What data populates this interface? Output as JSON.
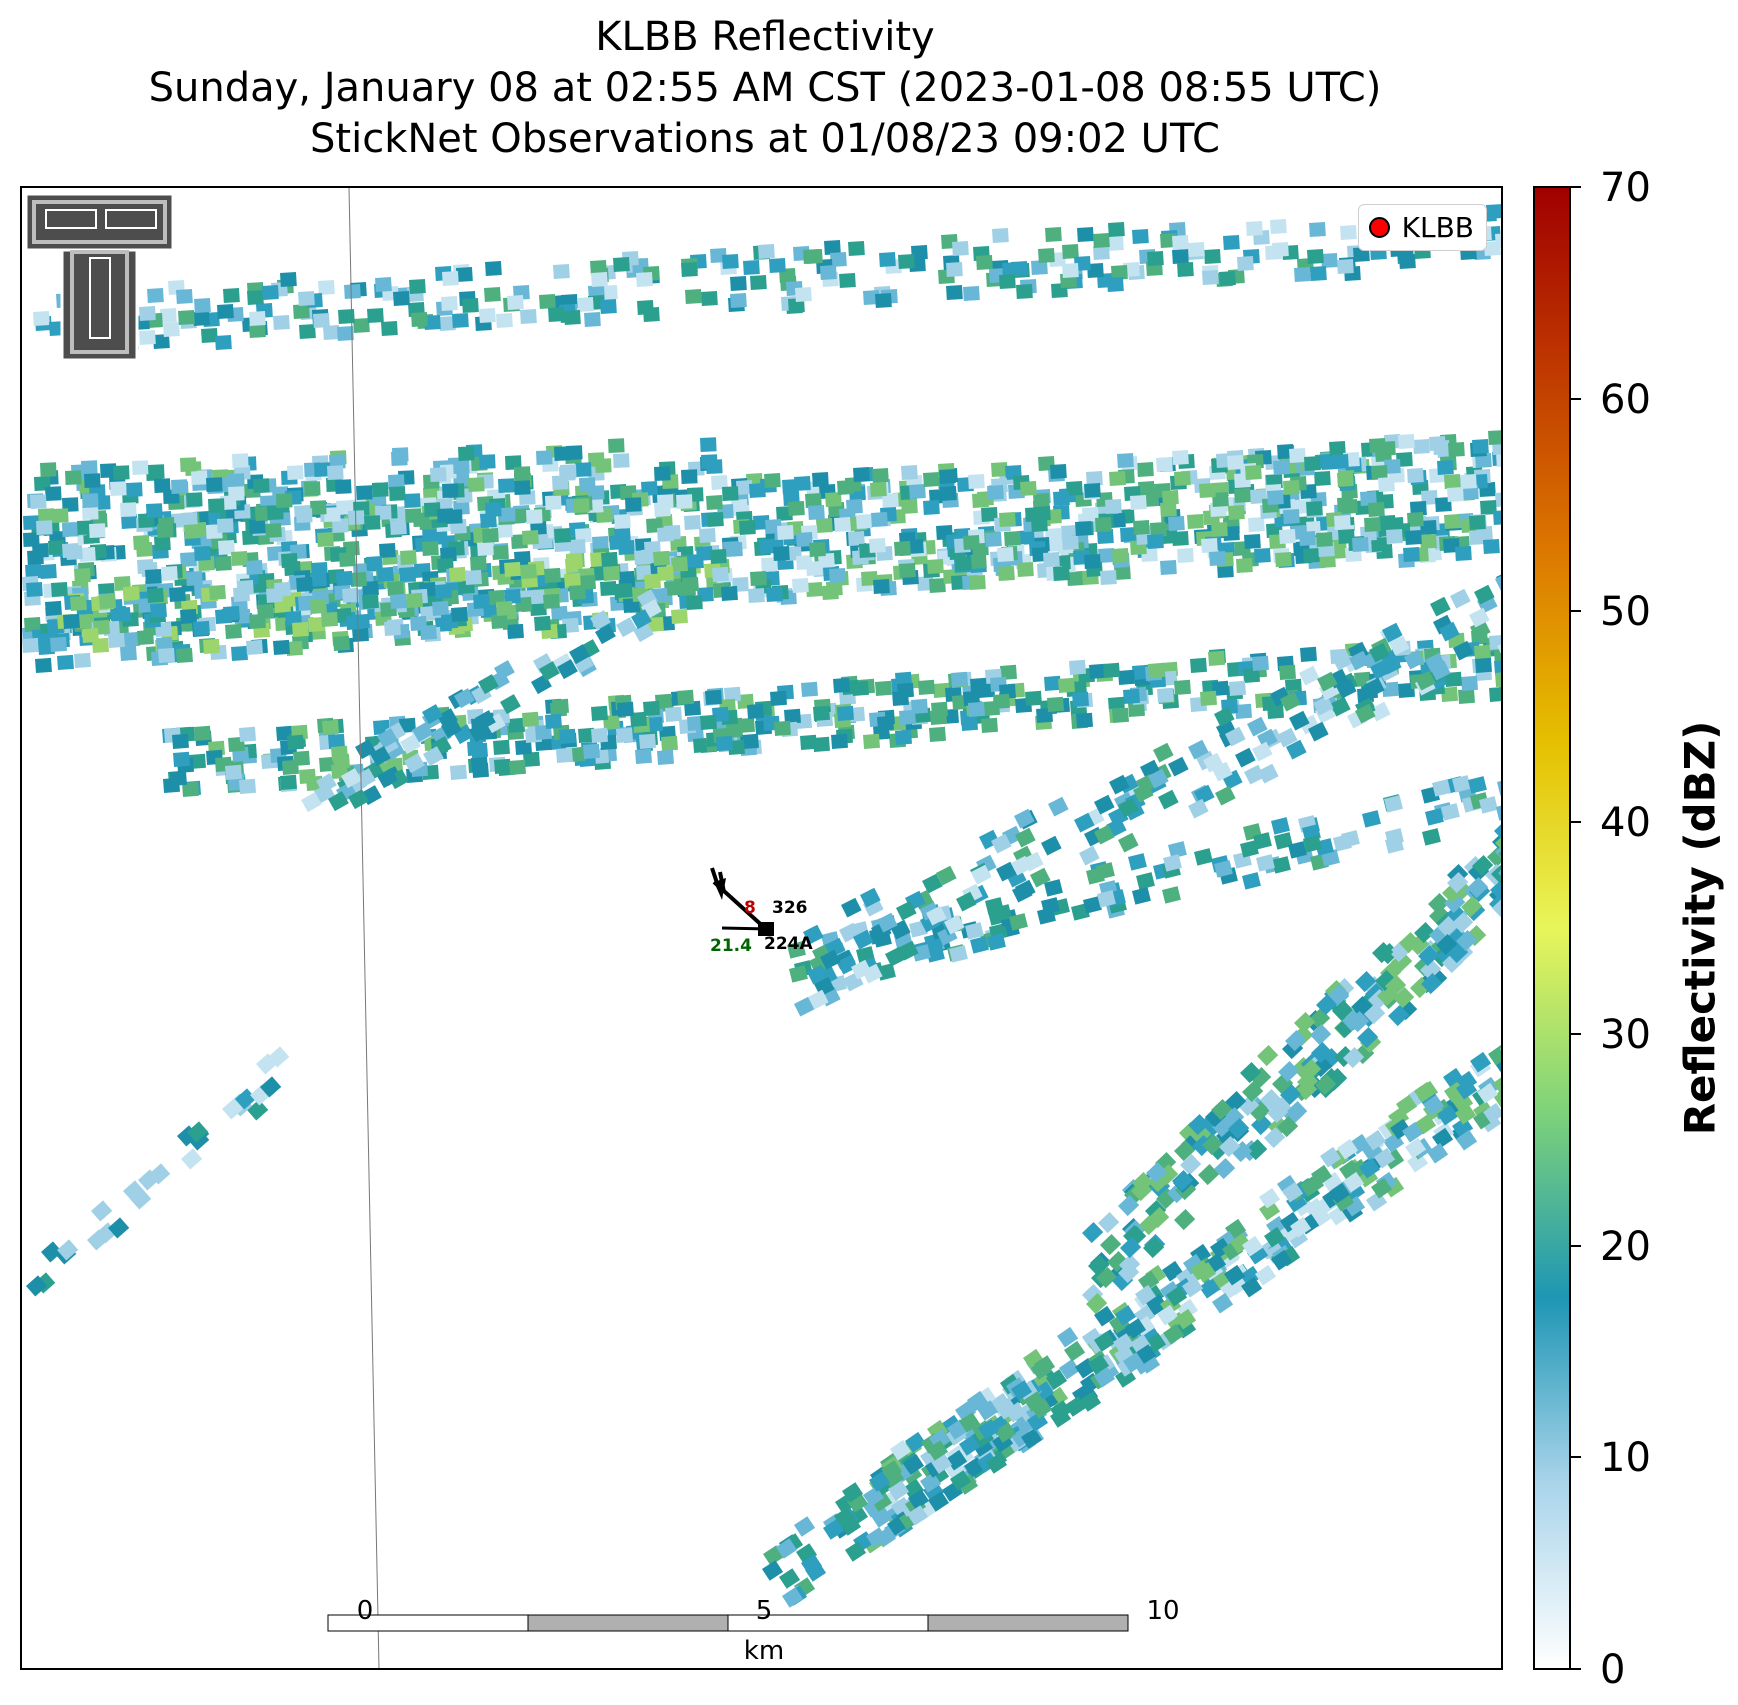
{
  "title": {
    "line1": "KLBB Reflectivity",
    "line2": "Sunday, January 08 at 02:55 AM CST (2023-01-08 08:55 UTC)",
    "line3": "StickNet Observations at 01/08/23 09:02 UTC"
  },
  "legend": {
    "label": "KLBB",
    "marker_color": "#ff0000"
  },
  "scale_bar": {
    "ticks": [
      "0",
      "5",
      "10"
    ],
    "unit": "km"
  },
  "colorbar": {
    "title": "Reflectivity (dBZ)",
    "ticks": [
      "0",
      "10",
      "20",
      "30",
      "40",
      "50",
      "60",
      "70"
    ],
    "range": [
      0,
      70
    ],
    "colors": [
      "#ffffff",
      "#a9d4ea",
      "#1e96b4",
      "#7dd27a",
      "#e8f55a",
      "#e5c000",
      "#dd7a00",
      "#c03a00",
      "#a00000"
    ]
  },
  "station": {
    "temperature": "8",
    "temperature_color": "#c00000",
    "pressure_code": "326",
    "dewpoint": "21.4",
    "dewpoint_color": "#006400",
    "id": "224A"
  },
  "logo": {
    "name": "texas-tech-double-t-logo"
  }
}
